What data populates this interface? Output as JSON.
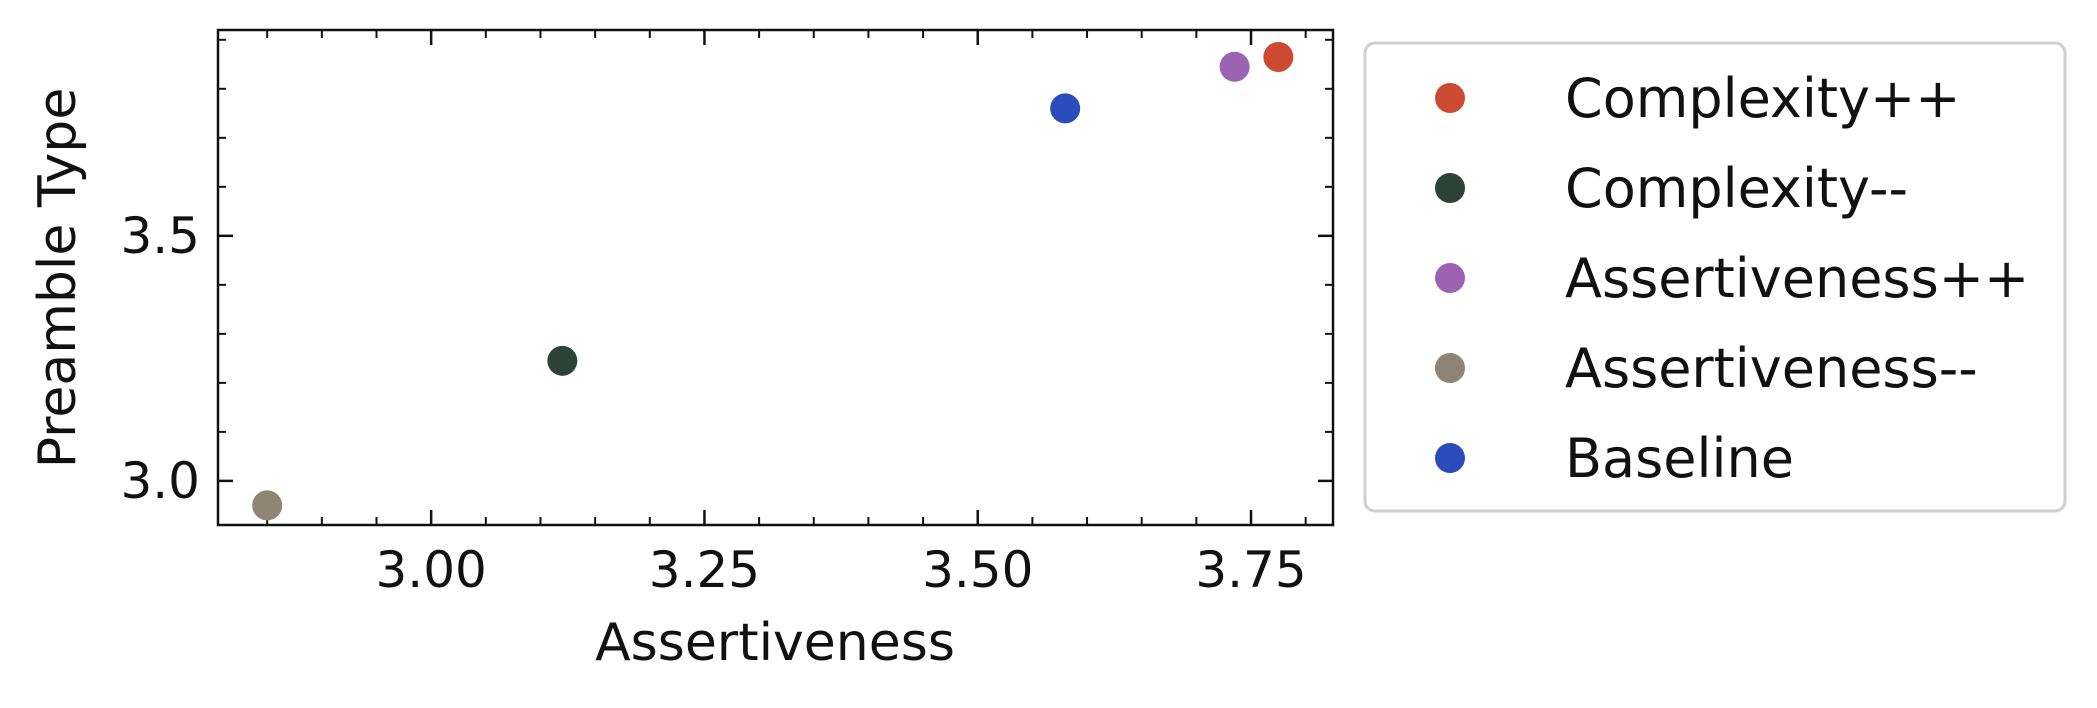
{
  "chart_data": {
    "type": "scatter",
    "title": "",
    "xlabel": "Assertiveness",
    "ylabel": "Preamble Type",
    "xlim": [
      2.805,
      3.825
    ],
    "ylim": [
      2.91,
      3.92
    ],
    "xticks": [
      3.0,
      3.25,
      3.5,
      3.75
    ],
    "xtick_labels": [
      "3.00",
      "3.25",
      "3.50",
      "3.75"
    ],
    "x_minor_step": 0.05,
    "yticks": [
      3.0,
      3.5
    ],
    "ytick_labels": [
      "3.0",
      "3.5"
    ],
    "y_minor_step": 0.1,
    "grid": false,
    "legend_position": "outside-right",
    "series": [
      {
        "name": "Complexity++",
        "color": "#cc4a2f",
        "x": [
          3.775
        ],
        "y": [
          3.865
        ]
      },
      {
        "name": "Complexity--",
        "color": "#2d4239",
        "x": [
          3.12
        ],
        "y": [
          3.245
        ]
      },
      {
        "name": "Assertiveness++",
        "color": "#9b63b2",
        "x": [
          3.735
        ],
        "y": [
          3.845
        ]
      },
      {
        "name": "Assertiveness--",
        "color": "#8e8574",
        "x": [
          2.85
        ],
        "y": [
          2.95
        ]
      },
      {
        "name": "Baseline",
        "color": "#2b4cbb",
        "x": [
          3.58
        ],
        "y": [
          3.76
        ]
      }
    ]
  }
}
